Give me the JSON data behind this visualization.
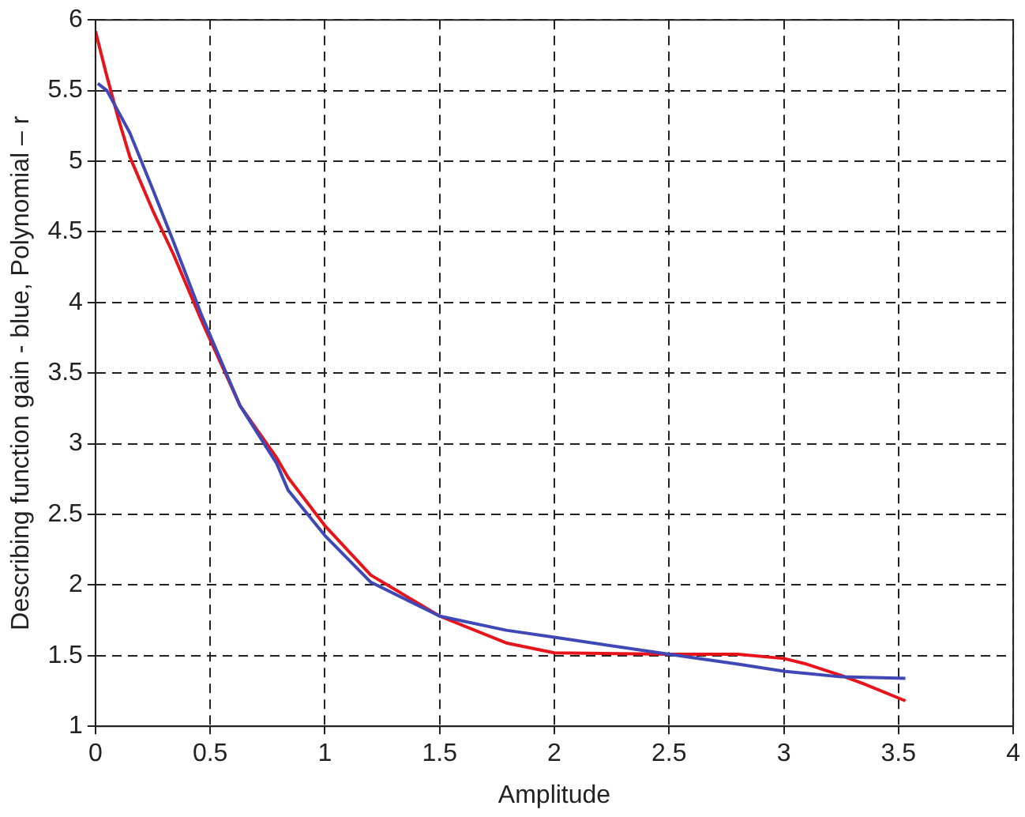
{
  "chart_data": {
    "type": "line",
    "xlabel": "Amplitude",
    "ylabel": "Describing function gain - blue, Polynomial – r",
    "xlim": [
      0,
      4
    ],
    "xticks": [
      0,
      0.5,
      1,
      1.5,
      2,
      2.5,
      3,
      3.5,
      4
    ],
    "ylim": [
      1,
      6
    ],
    "yticks": [
      1,
      1.5,
      2,
      2.5,
      3,
      3.5,
      4,
      4.5,
      5,
      5.5,
      6
    ],
    "grid": true,
    "legend": false,
    "marker": "none",
    "line_style": "solid",
    "series": [
      {
        "color": "#3f48b4",
        "x": [
          0.01,
          0.05,
          0.1,
          0.15,
          0.25,
          0.34,
          0.46,
          0.63,
          0.79,
          0.84,
          1,
          1.2,
          1.5,
          1.79,
          2,
          2.5,
          2.8,
          3,
          3.25,
          3.53
        ],
        "values": [
          5.55,
          5.5,
          5.35,
          5.2,
          4.8,
          4.43,
          3.92,
          3.27,
          2.86,
          2.67,
          2.35,
          2.02,
          1.78,
          1.68,
          1.63,
          1.51,
          1.44,
          1.39,
          1.35,
          1.34
        ]
      },
      {
        "color": "#e8141c",
        "x": [
          0,
          0.05,
          0.1,
          0.15,
          0.25,
          0.34,
          0.46,
          0.63,
          0.79,
          0.84,
          1,
          1.2,
          1.5,
          1.79,
          2,
          2.5,
          2.8,
          3,
          3.1,
          3.25,
          3.35,
          3.53
        ],
        "values": [
          5.92,
          5.6,
          5.3,
          5.03,
          4.65,
          4.34,
          3.88,
          3.27,
          2.9,
          2.76,
          2.42,
          2.07,
          1.78,
          1.59,
          1.52,
          1.51,
          1.51,
          1.48,
          1.44,
          1.36,
          1.3,
          1.18
        ]
      }
    ]
  }
}
